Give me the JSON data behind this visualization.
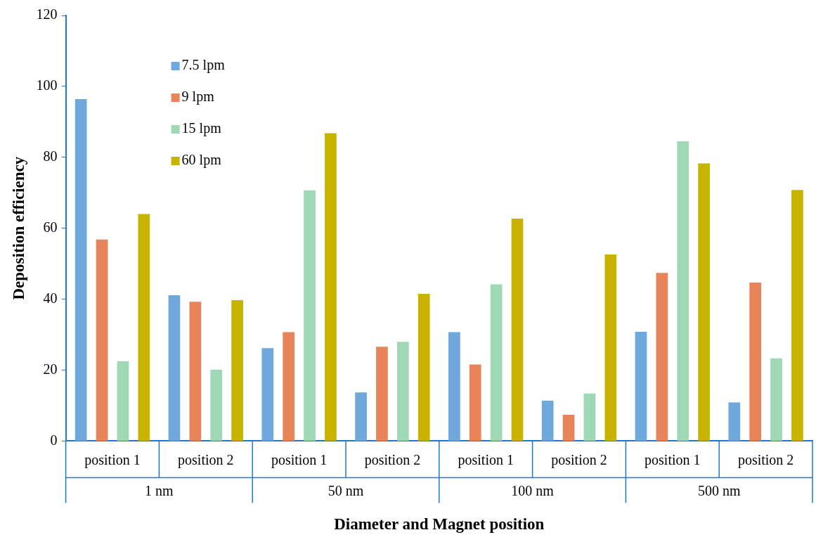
{
  "chart_data": {
    "type": "bar",
    "xlabel": "Diameter and Magnet position",
    "ylabel": "Deposition efficiency",
    "categories": [
      "position 1",
      "position 2",
      "position 1",
      "position 2",
      "position 1",
      "position 2",
      "position 1",
      "position 2"
    ],
    "annotations": [
      "1 nm",
      "50 nm",
      "100 nm",
      "500 nm"
    ],
    "series": [
      {
        "name": "7.5 lpm",
        "color": "#6fa8dc",
        "values": [
          96.4,
          41.1,
          26.2,
          13.7,
          30.7,
          11.4,
          30.8,
          10.9
        ]
      },
      {
        "name": "9 lpm",
        "color": "#e8845a",
        "values": [
          56.8,
          39.3,
          30.7,
          26.6,
          21.6,
          7.4,
          47.4,
          44.7
        ]
      },
      {
        "name": "15 lpm",
        "color": "#9fd8b5",
        "values": [
          22.5,
          20.1,
          70.7,
          28.0,
          44.2,
          13.4,
          84.5,
          23.3
        ]
      },
      {
        "name": "60 lpm",
        "color": "#c8b400",
        "values": [
          64.0,
          39.7,
          86.8,
          41.5,
          62.7,
          52.6,
          78.3,
          70.8
        ]
      }
    ],
    "ylim": [
      0,
      120
    ],
    "yticks": [
      0,
      20,
      40,
      60,
      80,
      100,
      120
    ],
    "grid": false,
    "legend": "top left"
  }
}
